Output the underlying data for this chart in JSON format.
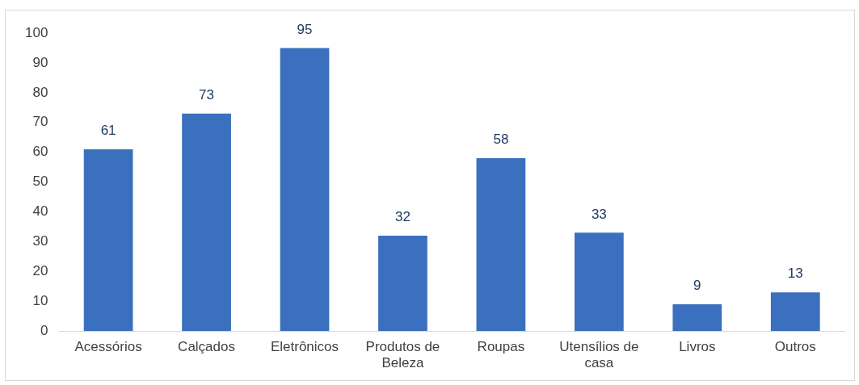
{
  "chart_data": {
    "type": "bar",
    "categories": [
      "Acessórios",
      "Calçados",
      "Eletrônicos",
      "Produtos de Beleza",
      "Roupas",
      "Utensílios de casa",
      "Livros",
      "Outros"
    ],
    "values": [
      61,
      73,
      95,
      32,
      58,
      33,
      9,
      13
    ],
    "color": "#3a70bd",
    "ylim": [
      0,
      100
    ],
    "yticks": [
      0,
      10,
      20,
      30,
      40,
      50,
      60,
      70,
      80,
      90,
      100
    ],
    "grid": false,
    "legend": false,
    "data_labels": true
  }
}
